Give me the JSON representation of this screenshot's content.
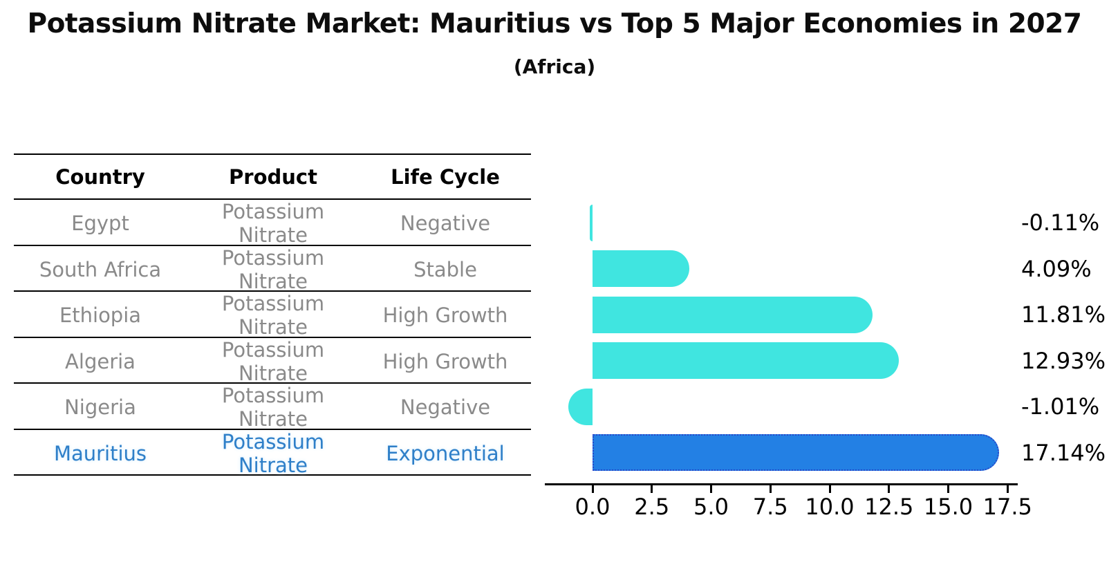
{
  "title": "Potassium Nitrate Market: Mauritius vs Top 5 Major Economies in 2027",
  "subtitle": "(Africa)",
  "table": {
    "headers": [
      "Country",
      "Product",
      "Life Cycle"
    ],
    "highlight_index": 5,
    "rows": [
      {
        "country": "Egypt",
        "product": "Potassium Nitrate",
        "life_cycle": "Negative"
      },
      {
        "country": "South Africa",
        "product": "Potassium Nitrate",
        "life_cycle": "Stable"
      },
      {
        "country": "Ethiopia",
        "product": "Potassium Nitrate",
        "life_cycle": "High Growth"
      },
      {
        "country": "Algeria",
        "product": "Potassium Nitrate",
        "life_cycle": "High Growth"
      },
      {
        "country": "Nigeria",
        "product": "Potassium Nitrate",
        "life_cycle": "Negative"
      },
      {
        "country": "Mauritius",
        "product": "Potassium Nitrate",
        "life_cycle": "Exponential"
      }
    ]
  },
  "chart_data": {
    "type": "bar",
    "orientation": "horizontal",
    "categories": [
      "Egypt",
      "South Africa",
      "Ethiopia",
      "Algeria",
      "Nigeria",
      "Mauritius"
    ],
    "values": [
      -0.11,
      4.09,
      11.81,
      12.93,
      -1.01,
      17.14
    ],
    "value_labels": [
      "-0.11%",
      "4.09%",
      "11.81%",
      "12.93%",
      "-1.01%",
      "17.14%"
    ],
    "highlight_index": 5,
    "x_ticks": [
      0.0,
      2.5,
      5.0,
      7.5,
      10.0,
      12.5,
      15.0,
      17.5
    ],
    "x_tick_labels": [
      "0.0",
      "2.5",
      "5.0",
      "7.5",
      "10.0",
      "12.5",
      "15.0",
      "17.5"
    ],
    "xlim": [
      -2.0,
      18.2
    ],
    "grid": false,
    "legend": null,
    "bar_color": "#40e5e0",
    "highlight_bar_color": "#2380e4",
    "highlight_border_color": "#2946c8",
    "highlight_text_color": "#2e7fc8",
    "text_color": "#8a8a8a",
    "axis_color": "#000000"
  }
}
